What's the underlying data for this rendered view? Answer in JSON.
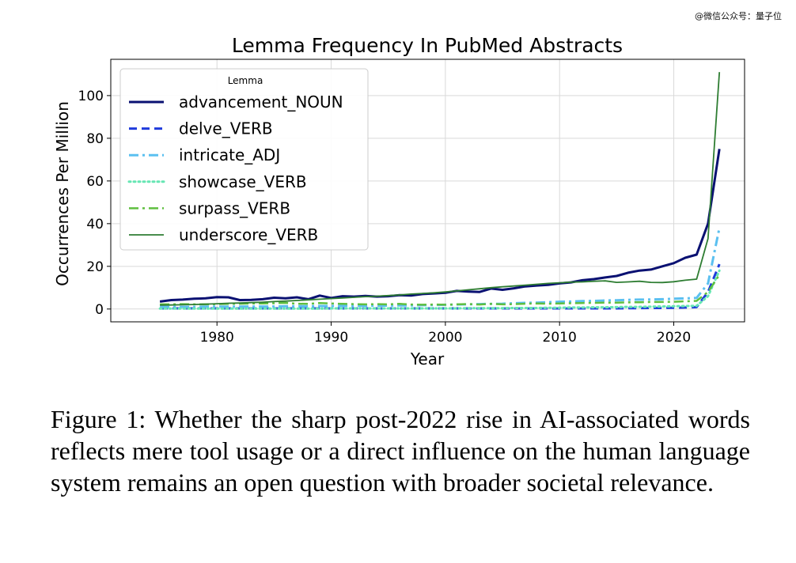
{
  "watermark": "@微信公众号：量子位",
  "caption": "Figure 1: Whether the sharp post-2022 rise in AI-associated words reflects mere tool usage or a direct influence on the human language system remains an open question with broader societal relevance.",
  "chart_data": {
    "type": "line",
    "title": "Lemma Frequency In PubMed Abstracts",
    "xlabel": "Year",
    "ylabel": "Occurrences Per Million",
    "xlim": [
      1970.7,
      2026.2
    ],
    "ylim": [
      -6,
      117
    ],
    "xticks": [
      1980,
      1990,
      2000,
      2010,
      2020
    ],
    "yticks": [
      0,
      20,
      40,
      60,
      80,
      100
    ],
    "grid": true,
    "legend_title": "Lemma",
    "legend_position": "top-left",
    "x": [
      1975,
      1976,
      1977,
      1978,
      1979,
      1980,
      1981,
      1982,
      1983,
      1984,
      1985,
      1986,
      1987,
      1988,
      1989,
      1990,
      1991,
      1992,
      1993,
      1994,
      1995,
      1996,
      1997,
      1998,
      1999,
      2000,
      2001,
      2002,
      2003,
      2004,
      2005,
      2006,
      2007,
      2008,
      2009,
      2010,
      2011,
      2012,
      2013,
      2014,
      2015,
      2016,
      2017,
      2018,
      2019,
      2020,
      2021,
      2022,
      2023,
      2024
    ],
    "series": [
      {
        "name": "advancement_NOUN",
        "color": "#0a1172",
        "style": "solid",
        "width": 3,
        "values": [
          3.5,
          4.2,
          4.4,
          4.8,
          5.0,
          5.6,
          5.5,
          4.2,
          4.3,
          4.6,
          5.3,
          5.0,
          5.5,
          4.6,
          6.3,
          5.2,
          6.0,
          5.8,
          6.1,
          5.8,
          6.0,
          6.5,
          6.3,
          7.0,
          7.3,
          7.6,
          8.5,
          8.2,
          8.0,
          9.6,
          9.0,
          9.7,
          10.6,
          11.0,
          11.3,
          12.0,
          12.5,
          13.5,
          14.0,
          14.8,
          15.5,
          17.0,
          18.0,
          18.5,
          20.0,
          21.5,
          24.0,
          25.5,
          40.0,
          75.0
        ]
      },
      {
        "name": "delve_VERB",
        "color": "#1f3bdc",
        "style": "dashed",
        "width": 3,
        "values": [
          0.3,
          0.3,
          0.3,
          0.3,
          0.3,
          0.3,
          0.3,
          0.3,
          0.3,
          0.3,
          0.3,
          0.3,
          0.3,
          0.3,
          0.3,
          0.3,
          0.3,
          0.3,
          0.3,
          0.3,
          0.3,
          0.3,
          0.3,
          0.3,
          0.3,
          0.3,
          0.3,
          0.3,
          0.3,
          0.3,
          0.3,
          0.3,
          0.3,
          0.3,
          0.3,
          0.3,
          0.3,
          0.3,
          0.3,
          0.3,
          0.3,
          0.4,
          0.4,
          0.5,
          0.5,
          0.6,
          0.7,
          0.9,
          8.0,
          21.0
        ]
      },
      {
        "name": "intricate_ADJ",
        "color": "#5bc0f0",
        "style": "dashdot",
        "width": 3,
        "values": [
          1.0,
          1.0,
          1.0,
          1.0,
          1.1,
          1.1,
          1.1,
          1.1,
          1.2,
          1.2,
          1.2,
          1.3,
          1.3,
          1.3,
          1.4,
          1.4,
          1.5,
          1.5,
          1.5,
          1.6,
          1.6,
          1.7,
          1.7,
          1.8,
          1.9,
          2.0,
          2.1,
          2.2,
          2.3,
          2.4,
          2.5,
          2.7,
          2.9,
          3.0,
          3.2,
          3.4,
          3.5,
          3.7,
          3.8,
          4.0,
          4.1,
          4.3,
          4.4,
          4.5,
          4.6,
          4.8,
          5.0,
          5.2,
          12.0,
          38.0
        ]
      },
      {
        "name": "showcase_VERB",
        "color": "#66e6b4",
        "style": "dotted",
        "width": 3,
        "values": [
          0.2,
          0.2,
          0.2,
          0.2,
          0.2,
          0.2,
          0.2,
          0.2,
          0.2,
          0.2,
          0.2,
          0.2,
          0.2,
          0.2,
          0.2,
          0.3,
          0.3,
          0.3,
          0.3,
          0.3,
          0.3,
          0.3,
          0.3,
          0.3,
          0.3,
          0.3,
          0.3,
          0.4,
          0.4,
          0.4,
          0.4,
          0.5,
          0.5,
          0.5,
          0.6,
          0.6,
          0.7,
          0.7,
          0.8,
          0.8,
          0.9,
          1.0,
          1.0,
          1.1,
          1.2,
          1.3,
          1.4,
          1.5,
          6.0,
          18.0
        ]
      },
      {
        "name": "surpass_VERB",
        "color": "#5fbf3f",
        "style": "dashdot",
        "width": 2.5,
        "values": [
          2.2,
          2.2,
          2.3,
          2.2,
          2.2,
          2.3,
          2.4,
          2.5,
          2.6,
          2.6,
          2.7,
          2.9,
          2.5,
          2.4,
          2.8,
          2.6,
          2.4,
          2.3,
          2.2,
          2.3,
          2.2,
          2.4,
          2.1,
          2.0,
          2.1,
          2.0,
          2.2,
          2.3,
          2.1,
          2.4,
          2.2,
          2.3,
          2.5,
          2.6,
          2.5,
          2.6,
          2.7,
          2.8,
          2.9,
          3.0,
          3.0,
          3.1,
          3.2,
          3.3,
          3.3,
          3.4,
          3.6,
          3.8,
          8.0,
          16.0
        ]
      },
      {
        "name": "underscore_VERB",
        "color": "#2e7d32",
        "style": "solid",
        "width": 1.8,
        "values": [
          1.8,
          1.9,
          2.0,
          2.1,
          2.3,
          2.5,
          2.7,
          2.8,
          3.0,
          3.2,
          3.5,
          3.7,
          4.0,
          4.3,
          4.6,
          4.9,
          5.2,
          5.5,
          5.8,
          6.0,
          6.3,
          6.6,
          7.0,
          7.3,
          7.6,
          8.0,
          8.5,
          9.0,
          9.5,
          10.0,
          10.4,
          10.8,
          11.2,
          11.6,
          12.0,
          12.3,
          12.6,
          12.7,
          13.0,
          13.2,
          12.5,
          12.7,
          13.0,
          12.5,
          12.4,
          12.8,
          13.5,
          14.0,
          33.0,
          111.0
        ]
      }
    ]
  }
}
